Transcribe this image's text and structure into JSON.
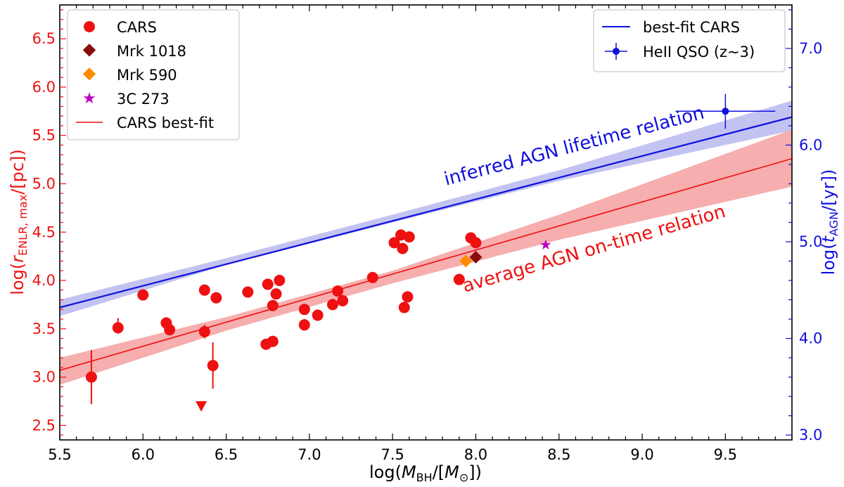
{
  "chart_data": {
    "type": "scatter",
    "xlabel": "log(M_BH/[M_⊙])",
    "ylabel_left": "log(r_ENLR,max/[pc])",
    "ylabel_right": "log(t_AGN/[yr])",
    "xlim": [
      5.5,
      9.9
    ],
    "ylim": [
      2.35,
      6.85
    ],
    "right_ylim": [
      2.95,
      7.45
    ],
    "x_ticks": [
      "5.5",
      "6.0",
      "6.5",
      "7.0",
      "7.5",
      "8.0",
      "8.5",
      "9.0",
      "9.5"
    ],
    "y_ticks": [
      "2.5",
      "3.0",
      "3.5",
      "4.0",
      "4.5",
      "5.0",
      "5.5",
      "6.0",
      "6.5"
    ],
    "right_ticks": [
      "3.0",
      "4.0",
      "5.0",
      "6.0",
      "7.0"
    ],
    "colors": {
      "cars": "#ee1111",
      "mrk1018": "#8b0a0a",
      "mrk590": "#ff8c00",
      "c3c273": "#bf00bf",
      "blue": "#1010dd",
      "red_band": "#f4a0a0",
      "blue_band": "#b8b8f0"
    },
    "cars_points": [
      {
        "x": 5.69,
        "y": 3.0,
        "yerr_lo": 0.28,
        "yerr_hi": 0.28
      },
      {
        "x": 5.85,
        "y": 3.51,
        "yerr_lo": 0.06,
        "yerr_hi": 0.1
      },
      {
        "x": 6.0,
        "y": 3.85,
        "yerr_lo": 0.0,
        "yerr_hi": 0.0
      },
      {
        "x": 6.14,
        "y": 3.56,
        "yerr_lo": 0.0,
        "yerr_hi": 0.0
      },
      {
        "x": 6.16,
        "y": 3.49,
        "yerr_lo": 0.0,
        "yerr_hi": 0.0
      },
      {
        "x": 6.37,
        "y": 3.9,
        "yerr_lo": 0.0,
        "yerr_hi": 0.0
      },
      {
        "x": 6.37,
        "y": 3.47,
        "yerr_lo": 0.07,
        "yerr_hi": 0.07
      },
      {
        "x": 6.42,
        "y": 3.12,
        "yerr_lo": 0.24,
        "yerr_hi": 0.24
      },
      {
        "x": 6.44,
        "y": 3.82,
        "yerr_lo": 0.0,
        "yerr_hi": 0.0
      },
      {
        "x": 6.63,
        "y": 3.88,
        "yerr_lo": 0.0,
        "yerr_hi": 0.0
      },
      {
        "x": 6.74,
        "y": 3.34,
        "yerr_lo": 0.0,
        "yerr_hi": 0.0
      },
      {
        "x": 6.75,
        "y": 3.96,
        "yerr_lo": 0.0,
        "yerr_hi": 0.0
      },
      {
        "x": 6.78,
        "y": 3.37,
        "yerr_lo": 0.0,
        "yerr_hi": 0.0
      },
      {
        "x": 6.78,
        "y": 3.74,
        "yerr_lo": 0.0,
        "yerr_hi": 0.0
      },
      {
        "x": 6.8,
        "y": 3.86,
        "yerr_lo": 0.0,
        "yerr_hi": 0.0
      },
      {
        "x": 6.82,
        "y": 4.0,
        "yerr_lo": 0.0,
        "yerr_hi": 0.0
      },
      {
        "x": 6.97,
        "y": 3.7,
        "yerr_lo": 0.0,
        "yerr_hi": 0.0
      },
      {
        "x": 6.97,
        "y": 3.54,
        "yerr_lo": 0.06,
        "yerr_hi": 0.06
      },
      {
        "x": 7.05,
        "y": 3.64,
        "yerr_lo": 0.05,
        "yerr_hi": 0.05
      },
      {
        "x": 7.14,
        "y": 3.75,
        "yerr_lo": 0.0,
        "yerr_hi": 0.0
      },
      {
        "x": 7.17,
        "y": 3.89,
        "yerr_lo": 0.0,
        "yerr_hi": 0.0
      },
      {
        "x": 7.2,
        "y": 3.79,
        "yerr_lo": 0.0,
        "yerr_hi": 0.0
      },
      {
        "x": 7.38,
        "y": 4.03,
        "yerr_lo": 0.0,
        "yerr_hi": 0.0
      },
      {
        "x": 7.51,
        "y": 4.39,
        "yerr_lo": 0.0,
        "yerr_hi": 0.0
      },
      {
        "x": 7.55,
        "y": 4.47,
        "yerr_lo": 0.0,
        "yerr_hi": 0.0
      },
      {
        "x": 7.56,
        "y": 4.33,
        "yerr_lo": 0.0,
        "yerr_hi": 0.0
      },
      {
        "x": 7.57,
        "y": 3.72,
        "yerr_lo": 0.0,
        "yerr_hi": 0.0
      },
      {
        "x": 7.59,
        "y": 3.83,
        "yerr_lo": 0.0,
        "yerr_hi": 0.0
      },
      {
        "x": 7.6,
        "y": 4.45,
        "yerr_lo": 0.0,
        "yerr_hi": 0.0
      },
      {
        "x": 7.9,
        "y": 4.01,
        "yerr_lo": 0.0,
        "yerr_hi": 0.0
      },
      {
        "x": 7.97,
        "y": 4.44,
        "yerr_lo": 0.0,
        "yerr_hi": 0.0
      },
      {
        "x": 8.0,
        "y": 4.39,
        "yerr_lo": 0.0,
        "yerr_hi": 0.0
      }
    ],
    "cars_upper_limit": {
      "x": 6.35,
      "y": 2.7
    },
    "mrk1018": {
      "x": 8.0,
      "y": 4.24
    },
    "mrk590": {
      "x": 7.94,
      "y": 4.2
    },
    "c3c273": {
      "x": 8.42,
      "y": 4.37
    },
    "heii_qso": {
      "x": 9.5,
      "y": 5.75,
      "xerr": 0.3,
      "yerr": 0.18
    },
    "cars_fit": {
      "x": [
        5.5,
        9.9
      ],
      "y": [
        3.07,
        5.26
      ]
    },
    "cars_fit_band": {
      "x": [
        5.5,
        6.5,
        7.5,
        8.5,
        9.9
      ],
      "lower": [
        2.92,
        3.48,
        3.97,
        4.42,
        4.97
      ],
      "upper": [
        3.2,
        3.62,
        4.1,
        4.68,
        5.56
      ]
    },
    "blue_fit": {
      "x": [
        5.5,
        9.9
      ],
      "y": [
        3.72,
        5.69
      ]
    },
    "blue_fit_band": {
      "x": [
        5.5,
        6.5,
        7.5,
        8.5,
        9.9
      ],
      "lower": [
        3.63,
        4.16,
        4.6,
        5.03,
        5.55
      ],
      "upper": [
        3.8,
        4.23,
        4.68,
        5.14,
        5.86
      ]
    },
    "annotations": {
      "blue_label": "inferred AGN lifetime relation",
      "red_label": "average AGN on-time relation"
    },
    "legend_left": {
      "position": "top-left",
      "entries": [
        "CARS",
        "Mrk 1018",
        "Mrk 590",
        "3C 273",
        "CARS best-fit"
      ]
    },
    "legend_right": {
      "position": "top-right",
      "entries": [
        "best-fit CARS",
        "HeII QSO (z~3)"
      ]
    }
  }
}
